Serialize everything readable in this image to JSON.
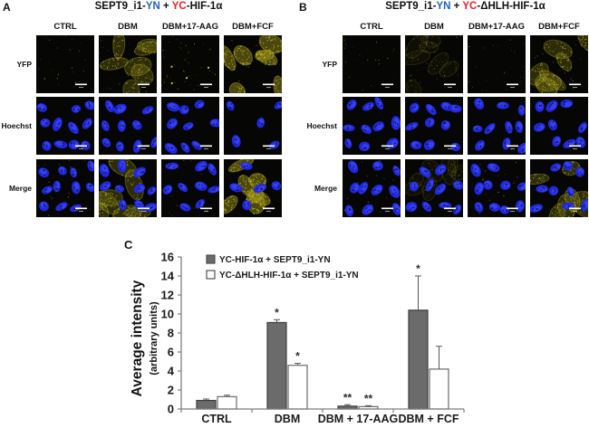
{
  "colors": {
    "yn_blue": "#1f63c4",
    "yc_red": "#ee1d23",
    "bar_gray": "#6b6b6b",
    "bar_white": "#ffffff",
    "bar_border": "#3d3d3d",
    "axis_gray": "#7f7f7f",
    "error_bar": "#555555",
    "nuclei_blue": "#2029e0",
    "yfp_yellow": "#d6cf2e"
  },
  "panelA": {
    "label": "A",
    "title_parts": [
      {
        "text": "SEPT9_i1-",
        "color": "#111111"
      },
      {
        "text": "YN",
        "color": "#1f63c4"
      },
      {
        "text": " + ",
        "color": "#111111"
      },
      {
        "text": "YC",
        "color": "#ee1d23"
      },
      {
        "text": "-HIF-1α",
        "color": "#111111"
      }
    ],
    "columns": [
      "CTRL",
      "DBM",
      "DBM+17-AAG",
      "DBM+FCF"
    ],
    "rows": [
      {
        "label": "YFP",
        "tiles": [
          {
            "nuclei": 0,
            "yellow": 0,
            "dots": 1,
            "seed": 101
          },
          {
            "nuclei": 0,
            "yellow": 2,
            "dots": 1,
            "seed": 102
          },
          {
            "nuclei": 0,
            "yellow": 0,
            "dots": 2,
            "seed": 103
          },
          {
            "nuclei": 0,
            "yellow": 3,
            "dots": 1,
            "seed": 104
          }
        ]
      },
      {
        "label": "Hoechst",
        "tiles": [
          {
            "nuclei": 11,
            "yellow": 0,
            "dots": 0,
            "seed": 105
          },
          {
            "nuclei": 10,
            "yellow": 0,
            "dots": 0,
            "seed": 106
          },
          {
            "nuclei": 9,
            "yellow": 0,
            "dots": 0,
            "seed": 107
          },
          {
            "nuclei": 5,
            "yellow": 0,
            "dots": 0,
            "seed": 108
          }
        ]
      },
      {
        "label": "Merge",
        "tiles": [
          {
            "nuclei": 11,
            "yellow": 0,
            "dots": 1,
            "seed": 109
          },
          {
            "nuclei": 10,
            "yellow": 2,
            "dots": 0,
            "seed": 110
          },
          {
            "nuclei": 9,
            "yellow": 0,
            "dots": 1,
            "seed": 111
          },
          {
            "nuclei": 5,
            "yellow": 3,
            "dots": 0,
            "seed": 112
          }
        ]
      }
    ]
  },
  "panelB": {
    "label": "B",
    "title_parts": [
      {
        "text": "SEPT9_i1-",
        "color": "#111111"
      },
      {
        "text": "YN",
        "color": "#1f63c4"
      },
      {
        "text": " + ",
        "color": "#111111"
      },
      {
        "text": "YC",
        "color": "#ee1d23"
      },
      {
        "text": "-ΔHLH-HIF-1α",
        "color": "#111111"
      }
    ],
    "columns": [
      "CTRL",
      "DBM",
      "DBM+17-AAG",
      "DBM+FCF"
    ],
    "rows": [
      {
        "label": "YFP",
        "tiles": [
          {
            "nuclei": 0,
            "yellow": 0,
            "dots": 1,
            "seed": 201
          },
          {
            "nuclei": 0,
            "yellow": 1,
            "dots": 1,
            "seed": 202
          },
          {
            "nuclei": 0,
            "yellow": 0,
            "dots": 1,
            "seed": 203
          },
          {
            "nuclei": 0,
            "yellow": 2,
            "dots": 1,
            "seed": 204
          }
        ]
      },
      {
        "label": "Hoechst",
        "tiles": [
          {
            "nuclei": 10,
            "yellow": 0,
            "dots": 0,
            "seed": 205
          },
          {
            "nuclei": 10,
            "yellow": 0,
            "dots": 0,
            "seed": 206
          },
          {
            "nuclei": 10,
            "yellow": 0,
            "dots": 0,
            "seed": 207
          },
          {
            "nuclei": 9,
            "yellow": 0,
            "dots": 0,
            "seed": 208
          }
        ]
      },
      {
        "label": "Merge",
        "tiles": [
          {
            "nuclei": 10,
            "yellow": 0,
            "dots": 1,
            "seed": 209
          },
          {
            "nuclei": 10,
            "yellow": 1,
            "dots": 0,
            "seed": 210
          },
          {
            "nuclei": 10,
            "yellow": 0,
            "dots": 1,
            "seed": 211
          },
          {
            "nuclei": 9,
            "yellow": 2,
            "dots": 0,
            "seed": 212
          }
        ]
      }
    ]
  },
  "panelC": {
    "label": "C"
  },
  "chart_data": {
    "type": "bar",
    "title": "",
    "categories": [
      "CTRL",
      "DBM",
      "DBM + 17-AAG",
      "DBM + FCF"
    ],
    "series": [
      {
        "name": "YC-HIF-1α + SEPT9_i1-YN",
        "fill": "#6b6b6b",
        "values": [
          0.9,
          9.1,
          0.3,
          10.4
        ],
        "errors": [
          0.15,
          0.3,
          0.15,
          3.6
        ],
        "sig": [
          "",
          "*",
          "**",
          "*"
        ]
      },
      {
        "name": "YC-ΔHLH-HIF-1α + SEPT9_i1-YN",
        "fill": "#ffffff",
        "values": [
          1.3,
          4.6,
          0.25,
          4.2
        ],
        "errors": [
          0.15,
          0.2,
          0.1,
          2.4
        ],
        "sig": [
          "",
          "*",
          "**",
          ""
        ]
      }
    ],
    "ylabel": "Average intensity",
    "ylabel_sub": "(arbitrary units)",
    "ylim": [
      0,
      16
    ],
    "ytick_step": 2,
    "grid": false,
    "legend_position": "top-left-inside"
  }
}
